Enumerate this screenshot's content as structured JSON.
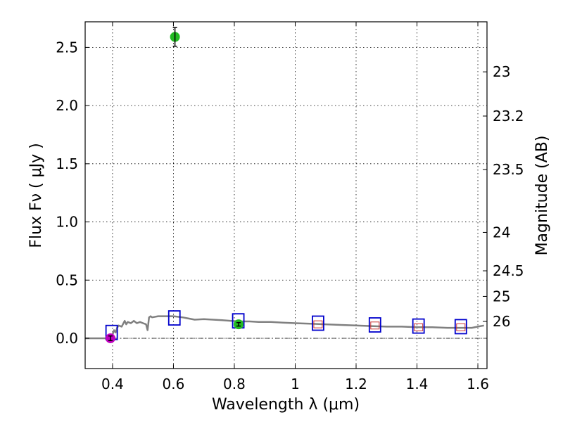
{
  "chart_data": {
    "type": "scatter",
    "xlabel": "Wavelength  λ (μm)",
    "ylabel": "Flux  Fν  ( μJy )",
    "ylabel_right": "Magnitude (AB)",
    "xlim": [
      0.31,
      1.63
    ],
    "ylim": [
      -0.26,
      2.72
    ],
    "grid": true,
    "x_ticks": [
      0.4,
      0.6,
      0.8,
      1.0,
      1.2,
      1.4,
      1.6
    ],
    "x_tick_labels": [
      "0.4",
      "0.6",
      "0.8",
      "1",
      "1.2",
      "1.4",
      "1.6"
    ],
    "y_ticks": [
      0.0,
      0.5,
      1.0,
      1.5,
      2.0,
      2.5
    ],
    "y_tick_labels": [
      "0.0",
      "0.5",
      "1.0",
      "1.5",
      "2.0",
      "2.5"
    ],
    "right_ticks": [
      {
        "label": "23",
        "flux": 2.29
      },
      {
        "label": "23.2",
        "flux": 1.91
      },
      {
        "label": "23.5",
        "flux": 1.45
      },
      {
        "label": "24",
        "flux": 0.91
      },
      {
        "label": "24.5",
        "flux": 0.58
      },
      {
        "label": "25",
        "flux": 0.36
      },
      {
        "label": "26",
        "flux": 0.145
      }
    ],
    "zero_line": 0.0,
    "series": [
      {
        "name": "model-sed",
        "kind": "line",
        "color": "#808080",
        "x": [
          0.31,
          0.36,
          0.38,
          0.39,
          0.4,
          0.405,
          0.41,
          0.415,
          0.42,
          0.43,
          0.44,
          0.445,
          0.45,
          0.46,
          0.47,
          0.48,
          0.49,
          0.5,
          0.51,
          0.515,
          0.52,
          0.525,
          0.53,
          0.55,
          0.57,
          0.6,
          0.63,
          0.65,
          0.67,
          0.7,
          0.73,
          0.76,
          0.79,
          0.82,
          0.85,
          0.88,
          0.92,
          0.96,
          1.0,
          1.05,
          1.1,
          1.15,
          1.2,
          1.25,
          1.3,
          1.35,
          1.4,
          1.45,
          1.5,
          1.55,
          1.58,
          1.6,
          1.62
        ],
        "y": [
          0.0,
          0.0,
          0.0,
          0.01,
          0.03,
          0.07,
          0.05,
          0.09,
          0.11,
          0.1,
          0.15,
          0.12,
          0.14,
          0.13,
          0.15,
          0.13,
          0.14,
          0.13,
          0.12,
          0.07,
          0.18,
          0.19,
          0.18,
          0.19,
          0.19,
          0.19,
          0.18,
          0.17,
          0.16,
          0.165,
          0.16,
          0.155,
          0.15,
          0.145,
          0.145,
          0.14,
          0.14,
          0.135,
          0.13,
          0.125,
          0.12,
          0.115,
          0.11,
          0.105,
          0.1,
          0.1,
          0.095,
          0.095,
          0.09,
          0.09,
          0.09,
          0.1,
          0.11
        ]
      },
      {
        "name": "green-measurements",
        "kind": "points",
        "color": "#22bb22",
        "points": [
          {
            "x": 0.605,
            "y": 2.59,
            "err": 0.08
          },
          {
            "x": 0.814,
            "y": 0.12,
            "err": 0.015
          }
        ]
      },
      {
        "name": "magenta-measurement",
        "kind": "points",
        "color": "#c000c0",
        "points": [
          {
            "x": 0.393,
            "y": 0.0,
            "err": 0.02
          }
        ]
      },
      {
        "name": "model-photometry",
        "kind": "squares",
        "color": "#0000cc",
        "x": [
          0.397,
          0.603,
          0.813,
          1.075,
          1.262,
          1.405,
          1.544
        ],
        "y": [
          0.05,
          0.175,
          0.15,
          0.13,
          0.115,
          0.105,
          0.1
        ]
      },
      {
        "name": "upper-limits",
        "kind": "small-squares",
        "color": "#cc3333",
        "x": [
          1.075,
          1.262,
          1.405,
          1.544
        ],
        "y": [
          0.12,
          0.11,
          0.095,
          0.095
        ]
      }
    ]
  }
}
